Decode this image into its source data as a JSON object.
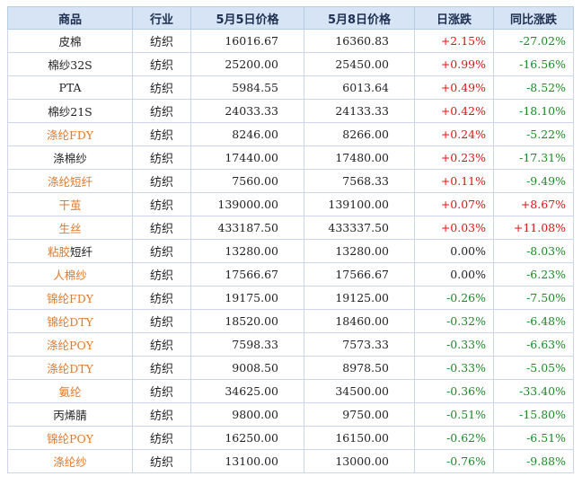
{
  "headers": [
    "商品",
    "行业",
    "5月5日价格",
    "5月8日价格",
    "日涨跌",
    "同比涨跌"
  ],
  "colors": {
    "orange": "#e3782a",
    "red": "#e01414",
    "green": "#1d8a26",
    "header_bg": "#d7e4f6"
  },
  "rows": [
    {
      "name": [
        {
          "t": "皮棉",
          "c": "black"
        }
      ],
      "industry": "纺织",
      "p1": "16016.67",
      "p2": "16360.83",
      "day": "+2.15%",
      "day_c": "red",
      "yoy": "-27.02%",
      "yoy_c": "green"
    },
    {
      "name": [
        {
          "t": "棉纱32S",
          "c": "black"
        }
      ],
      "industry": "纺织",
      "p1": "25200.00",
      "p2": "25450.00",
      "day": "+0.99%",
      "day_c": "red",
      "yoy": "-16.56%",
      "yoy_c": "green"
    },
    {
      "name": [
        {
          "t": "PTA",
          "c": "black"
        }
      ],
      "industry": "纺织",
      "p1": "5984.55",
      "p2": "6013.64",
      "day": "+0.49%",
      "day_c": "red",
      "yoy": "-8.52%",
      "yoy_c": "green"
    },
    {
      "name": [
        {
          "t": "棉纱21S",
          "c": "black"
        }
      ],
      "industry": "纺织",
      "p1": "24033.33",
      "p2": "24133.33",
      "day": "+0.42%",
      "day_c": "red",
      "yoy": "-18.10%",
      "yoy_c": "green"
    },
    {
      "name": [
        {
          "t": "涤纶FDY",
          "c": "orange"
        }
      ],
      "industry": "纺织",
      "p1": "8246.00",
      "p2": "8266.00",
      "day": "+0.24%",
      "day_c": "red",
      "yoy": "-5.22%",
      "yoy_c": "green"
    },
    {
      "name": [
        {
          "t": "涤棉纱",
          "c": "black"
        }
      ],
      "industry": "纺织",
      "p1": "17440.00",
      "p2": "17480.00",
      "day": "+0.23%",
      "day_c": "red",
      "yoy": "-17.31%",
      "yoy_c": "green"
    },
    {
      "name": [
        {
          "t": "涤纶短纤",
          "c": "orange"
        }
      ],
      "industry": "纺织",
      "p1": "7560.00",
      "p2": "7568.33",
      "day": "+0.11%",
      "day_c": "red",
      "yoy": "-9.49%",
      "yoy_c": "green"
    },
    {
      "name": [
        {
          "t": "干茧",
          "c": "orange"
        }
      ],
      "industry": "纺织",
      "p1": "139000.00",
      "p2": "139100.00",
      "day": "+0.07%",
      "day_c": "red",
      "yoy": "+8.67%",
      "yoy_c": "red"
    },
    {
      "name": [
        {
          "t": "生丝",
          "c": "orange"
        }
      ],
      "industry": "纺织",
      "p1": "433187.50",
      "p2": "433337.50",
      "day": "+0.03%",
      "day_c": "red",
      "yoy": "+11.08%",
      "yoy_c": "red"
    },
    {
      "name": [
        {
          "t": "粘胶",
          "c": "orange"
        },
        {
          "t": "短纤",
          "c": "black"
        }
      ],
      "industry": "纺织",
      "p1": "13280.00",
      "p2": "13280.00",
      "day": "0.00%",
      "day_c": "gray",
      "yoy": "-8.03%",
      "yoy_c": "green"
    },
    {
      "name": [
        {
          "t": "人棉纱",
          "c": "orange"
        }
      ],
      "industry": "纺织",
      "p1": "17566.67",
      "p2": "17566.67",
      "day": "0.00%",
      "day_c": "gray",
      "yoy": "-6.23%",
      "yoy_c": "green"
    },
    {
      "name": [
        {
          "t": "锦纶FDY",
          "c": "orange"
        }
      ],
      "industry": "纺织",
      "p1": "19175.00",
      "p2": "19125.00",
      "day": "-0.26%",
      "day_c": "green",
      "yoy": "-7.50%",
      "yoy_c": "green"
    },
    {
      "name": [
        {
          "t": "锦纶DTY",
          "c": "orange"
        }
      ],
      "industry": "纺织",
      "p1": "18520.00",
      "p2": "18460.00",
      "day": "-0.32%",
      "day_c": "green",
      "yoy": "-6.48%",
      "yoy_c": "green"
    },
    {
      "name": [
        {
          "t": "涤纶POY",
          "c": "orange"
        }
      ],
      "industry": "纺织",
      "p1": "7598.33",
      "p2": "7573.33",
      "day": "-0.33%",
      "day_c": "green",
      "yoy": "-6.63%",
      "yoy_c": "green"
    },
    {
      "name": [
        {
          "t": "涤纶DTY",
          "c": "orange"
        }
      ],
      "industry": "纺织",
      "p1": "9008.50",
      "p2": "8978.50",
      "day": "-0.33%",
      "day_c": "green",
      "yoy": "-5.05%",
      "yoy_c": "green"
    },
    {
      "name": [
        {
          "t": "氨纶",
          "c": "orange"
        }
      ],
      "industry": "纺织",
      "p1": "34625.00",
      "p2": "34500.00",
      "day": "-0.36%",
      "day_c": "green",
      "yoy": "-33.40%",
      "yoy_c": "green"
    },
    {
      "name": [
        {
          "t": "丙烯腈",
          "c": "black"
        }
      ],
      "industry": "纺织",
      "p1": "9800.00",
      "p2": "9750.00",
      "day": "-0.51%",
      "day_c": "green",
      "yoy": "-15.80%",
      "yoy_c": "green"
    },
    {
      "name": [
        {
          "t": "锦纶POY",
          "c": "orange"
        }
      ],
      "industry": "纺织",
      "p1": "16250.00",
      "p2": "16150.00",
      "day": "-0.62%",
      "day_c": "green",
      "yoy": "-6.51%",
      "yoy_c": "green"
    },
    {
      "name": [
        {
          "t": "涤纶纱",
          "c": "orange"
        }
      ],
      "industry": "纺织",
      "p1": "13100.00",
      "p2": "13000.00",
      "day": "-0.76%",
      "day_c": "green",
      "yoy": "-9.88%",
      "yoy_c": "green"
    }
  ]
}
